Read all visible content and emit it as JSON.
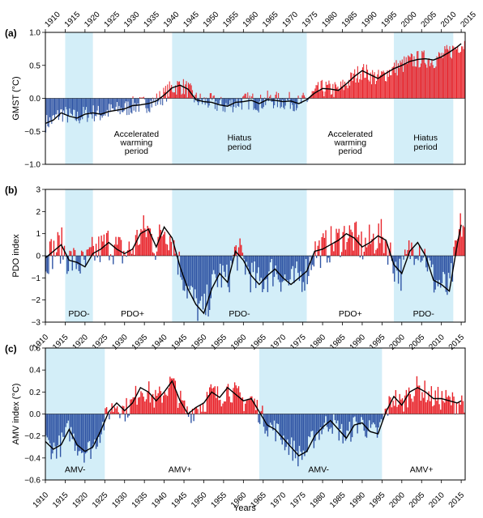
{
  "figure": {
    "xlabel": "Years"
  },
  "colors": {
    "positive": "#e8232a",
    "negative": "#2f54a4",
    "shade": "#d3eef8",
    "smooth": "#000000"
  },
  "chart_data": [
    {
      "type": "bar",
      "label": "(a)",
      "ylabel": "GMST (°C)",
      "xlim": [
        1910,
        2016
      ],
      "ylim": [
        -1.0,
        1.0
      ],
      "yticks": [
        -1.0,
        -0.5,
        0.0,
        0.5,
        1.0
      ],
      "ytick_labels": [
        "−1.0",
        "−0.5",
        "0.0",
        "0.5",
        "1.0"
      ],
      "xticks_top": [
        1910,
        1915,
        1920,
        1925,
        1930,
        1935,
        1940,
        1945,
        1950,
        1955,
        1960,
        1965,
        1970,
        1975,
        1980,
        1985,
        1990,
        1995,
        2000,
        2005,
        2010,
        2015
      ],
      "xticks_bottom": [],
      "shaded_periods": [
        [
          1915,
          1922
        ],
        [
          1942,
          1976
        ],
        [
          1998,
          2013
        ]
      ],
      "annotations": [
        {
          "text": "Accelerated",
          "x": 1933,
          "y": -0.58
        },
        {
          "text": "warming",
          "x": 1933,
          "y": -0.71
        },
        {
          "text": "period",
          "x": 1933,
          "y": -0.84
        },
        {
          "text": "Hiatus",
          "x": 1959,
          "y": -0.64
        },
        {
          "text": "period",
          "x": 1959,
          "y": -0.78
        },
        {
          "text": "Accelerated",
          "x": 1987,
          "y": -0.58
        },
        {
          "text": "warming",
          "x": 1987,
          "y": -0.71
        },
        {
          "text": "period",
          "x": 1987,
          "y": -0.84
        },
        {
          "text": "Hiatus",
          "x": 2006,
          "y": -0.64
        },
        {
          "text": "period",
          "x": 2006,
          "y": -0.78
        }
      ],
      "smooth": {
        "x": [
          1910,
          1912,
          1914,
          1916,
          1918,
          1920,
          1922,
          1924,
          1926,
          1928,
          1930,
          1932,
          1934,
          1936,
          1938,
          1940,
          1942,
          1944,
          1946,
          1948,
          1950,
          1952,
          1954,
          1956,
          1958,
          1960,
          1962,
          1964,
          1966,
          1968,
          1970,
          1972,
          1974,
          1976,
          1978,
          1980,
          1982,
          1984,
          1986,
          1988,
          1990,
          1992,
          1994,
          1996,
          1998,
          2000,
          2002,
          2004,
          2006,
          2008,
          2010,
          2012,
          2014,
          2015
        ],
        "y": [
          -0.38,
          -0.33,
          -0.22,
          -0.27,
          -0.3,
          -0.24,
          -0.22,
          -0.24,
          -0.2,
          -0.18,
          -0.16,
          -0.11,
          -0.1,
          -0.08,
          -0.04,
          0.05,
          0.16,
          0.2,
          0.14,
          -0.02,
          -0.05,
          -0.06,
          -0.1,
          -0.12,
          -0.06,
          -0.05,
          -0.03,
          -0.08,
          -0.02,
          -0.03,
          -0.05,
          -0.04,
          -0.08,
          -0.02,
          0.08,
          0.15,
          0.14,
          0.12,
          0.22,
          0.33,
          0.42,
          0.36,
          0.3,
          0.38,
          0.45,
          0.5,
          0.56,
          0.59,
          0.6,
          0.58,
          0.63,
          0.7,
          0.78,
          0.83
        ]
      }
    },
    {
      "type": "bar",
      "label": "(b)",
      "ylabel": "PDO index",
      "xlim": [
        1910,
        2016
      ],
      "ylim": [
        -3,
        3
      ],
      "yticks": [
        -3,
        -2,
        -1,
        0,
        1,
        2,
        3
      ],
      "ytick_labels": [
        "−3",
        "−2",
        "−1",
        "0",
        "1",
        "2",
        "3"
      ],
      "xticks_top": [],
      "xticks_bottom": [
        1910,
        1915,
        1920,
        1925,
        1930,
        1935,
        1940,
        1945,
        1950,
        1955,
        1960,
        1965,
        1970,
        1975,
        1980,
        1985,
        1990,
        1995,
        2000,
        2005,
        2010,
        2015
      ],
      "shaded_periods": [
        [
          1915,
          1922
        ],
        [
          1942,
          1976
        ],
        [
          1998,
          2013
        ]
      ],
      "annotations": [
        {
          "text": "PDO-",
          "x": 1918.5,
          "y": -2.75
        },
        {
          "text": "PDO+",
          "x": 1932,
          "y": -2.75
        },
        {
          "text": "PDO-",
          "x": 1959,
          "y": -2.75
        },
        {
          "text": "PDO+",
          "x": 1987,
          "y": -2.75
        },
        {
          "text": "PDO-",
          "x": 2005.5,
          "y": -2.75
        }
      ],
      "smooth": {
        "x": [
          1910,
          1912,
          1914,
          1916,
          1918,
          1920,
          1922,
          1924,
          1926,
          1928,
          1930,
          1932,
          1934,
          1936,
          1938,
          1940,
          1942,
          1944,
          1946,
          1948,
          1950,
          1952,
          1954,
          1956,
          1958,
          1960,
          1962,
          1964,
          1966,
          1968,
          1970,
          1972,
          1974,
          1976,
          1978,
          1980,
          1982,
          1984,
          1986,
          1988,
          1990,
          1992,
          1994,
          1996,
          1998,
          2000,
          2002,
          2004,
          2006,
          2008,
          2010,
          2012,
          2014,
          2015
        ],
        "y": [
          -0.1,
          0.2,
          0.5,
          -0.2,
          -0.3,
          -0.5,
          0.1,
          0.3,
          0.6,
          0.3,
          0.1,
          0.3,
          1.0,
          1.2,
          0.4,
          1.3,
          0.8,
          -0.5,
          -1.5,
          -2.2,
          -2.6,
          -1.5,
          -0.8,
          -1.2,
          0.2,
          -0.2,
          -0.9,
          -1.3,
          -0.9,
          -0.6,
          -1.0,
          -1.3,
          -1.0,
          -0.7,
          0.2,
          0.3,
          0.5,
          0.7,
          1.0,
          0.8,
          0.4,
          0.6,
          0.9,
          0.7,
          -0.4,
          -0.8,
          0.2,
          0.6,
          0.0,
          -1.1,
          -1.3,
          -1.6,
          0.5,
          1.4
        ]
      }
    },
    {
      "type": "bar",
      "label": "(c)",
      "ylabel": "AMV index (°C)",
      "xlim": [
        1910,
        2016
      ],
      "ylim": [
        -0.6,
        0.6
      ],
      "yticks": [
        -0.6,
        -0.4,
        -0.2,
        0.0,
        0.2,
        0.4,
        0.6
      ],
      "ytick_labels": [
        "−0.6",
        "−0.4",
        "−0.2",
        "0.0",
        "0.2",
        "0.4",
        "0.6"
      ],
      "xticks_top": [],
      "xticks_bottom": [
        1910,
        1915,
        1920,
        1925,
        1930,
        1935,
        1940,
        1945,
        1950,
        1955,
        1960,
        1965,
        1970,
        1975,
        1980,
        1985,
        1990,
        1995,
        2000,
        2005,
        2010,
        2015
      ],
      "shaded_periods": [
        [
          1910,
          1925
        ],
        [
          1964,
          1995
        ]
      ],
      "annotations": [
        {
          "text": "AMV-",
          "x": 1917.5,
          "y": -0.53
        },
        {
          "text": "AMV+",
          "x": 1944,
          "y": -0.53
        },
        {
          "text": "AMV-",
          "x": 1979,
          "y": -0.53
        },
        {
          "text": "AMV+",
          "x": 2005,
          "y": -0.53
        }
      ],
      "smooth": {
        "x": [
          1910,
          1912,
          1914,
          1916,
          1918,
          1920,
          1922,
          1924,
          1926,
          1928,
          1930,
          1932,
          1934,
          1936,
          1938,
          1940,
          1942,
          1944,
          1946,
          1948,
          1950,
          1952,
          1954,
          1956,
          1958,
          1960,
          1962,
          1964,
          1966,
          1968,
          1970,
          1972,
          1974,
          1976,
          1978,
          1980,
          1982,
          1984,
          1986,
          1988,
          1990,
          1992,
          1994,
          1996,
          1998,
          2000,
          2002,
          2004,
          2006,
          2008,
          2010,
          2012,
          2014,
          2015
        ],
        "y": [
          -0.25,
          -0.32,
          -0.28,
          -0.14,
          -0.28,
          -0.34,
          -0.3,
          -0.15,
          0.02,
          0.1,
          0.03,
          0.1,
          0.24,
          0.2,
          0.12,
          0.2,
          0.3,
          0.12,
          0.0,
          0.06,
          0.1,
          0.2,
          0.15,
          0.24,
          0.18,
          0.12,
          0.14,
          0.02,
          -0.1,
          -0.14,
          -0.22,
          -0.3,
          -0.38,
          -0.34,
          -0.2,
          -0.12,
          -0.06,
          -0.14,
          -0.22,
          -0.1,
          -0.08,
          -0.16,
          -0.18,
          0.02,
          0.16,
          0.08,
          0.2,
          0.24,
          0.2,
          0.14,
          0.14,
          0.12,
          0.1,
          0.12
        ]
      }
    }
  ]
}
